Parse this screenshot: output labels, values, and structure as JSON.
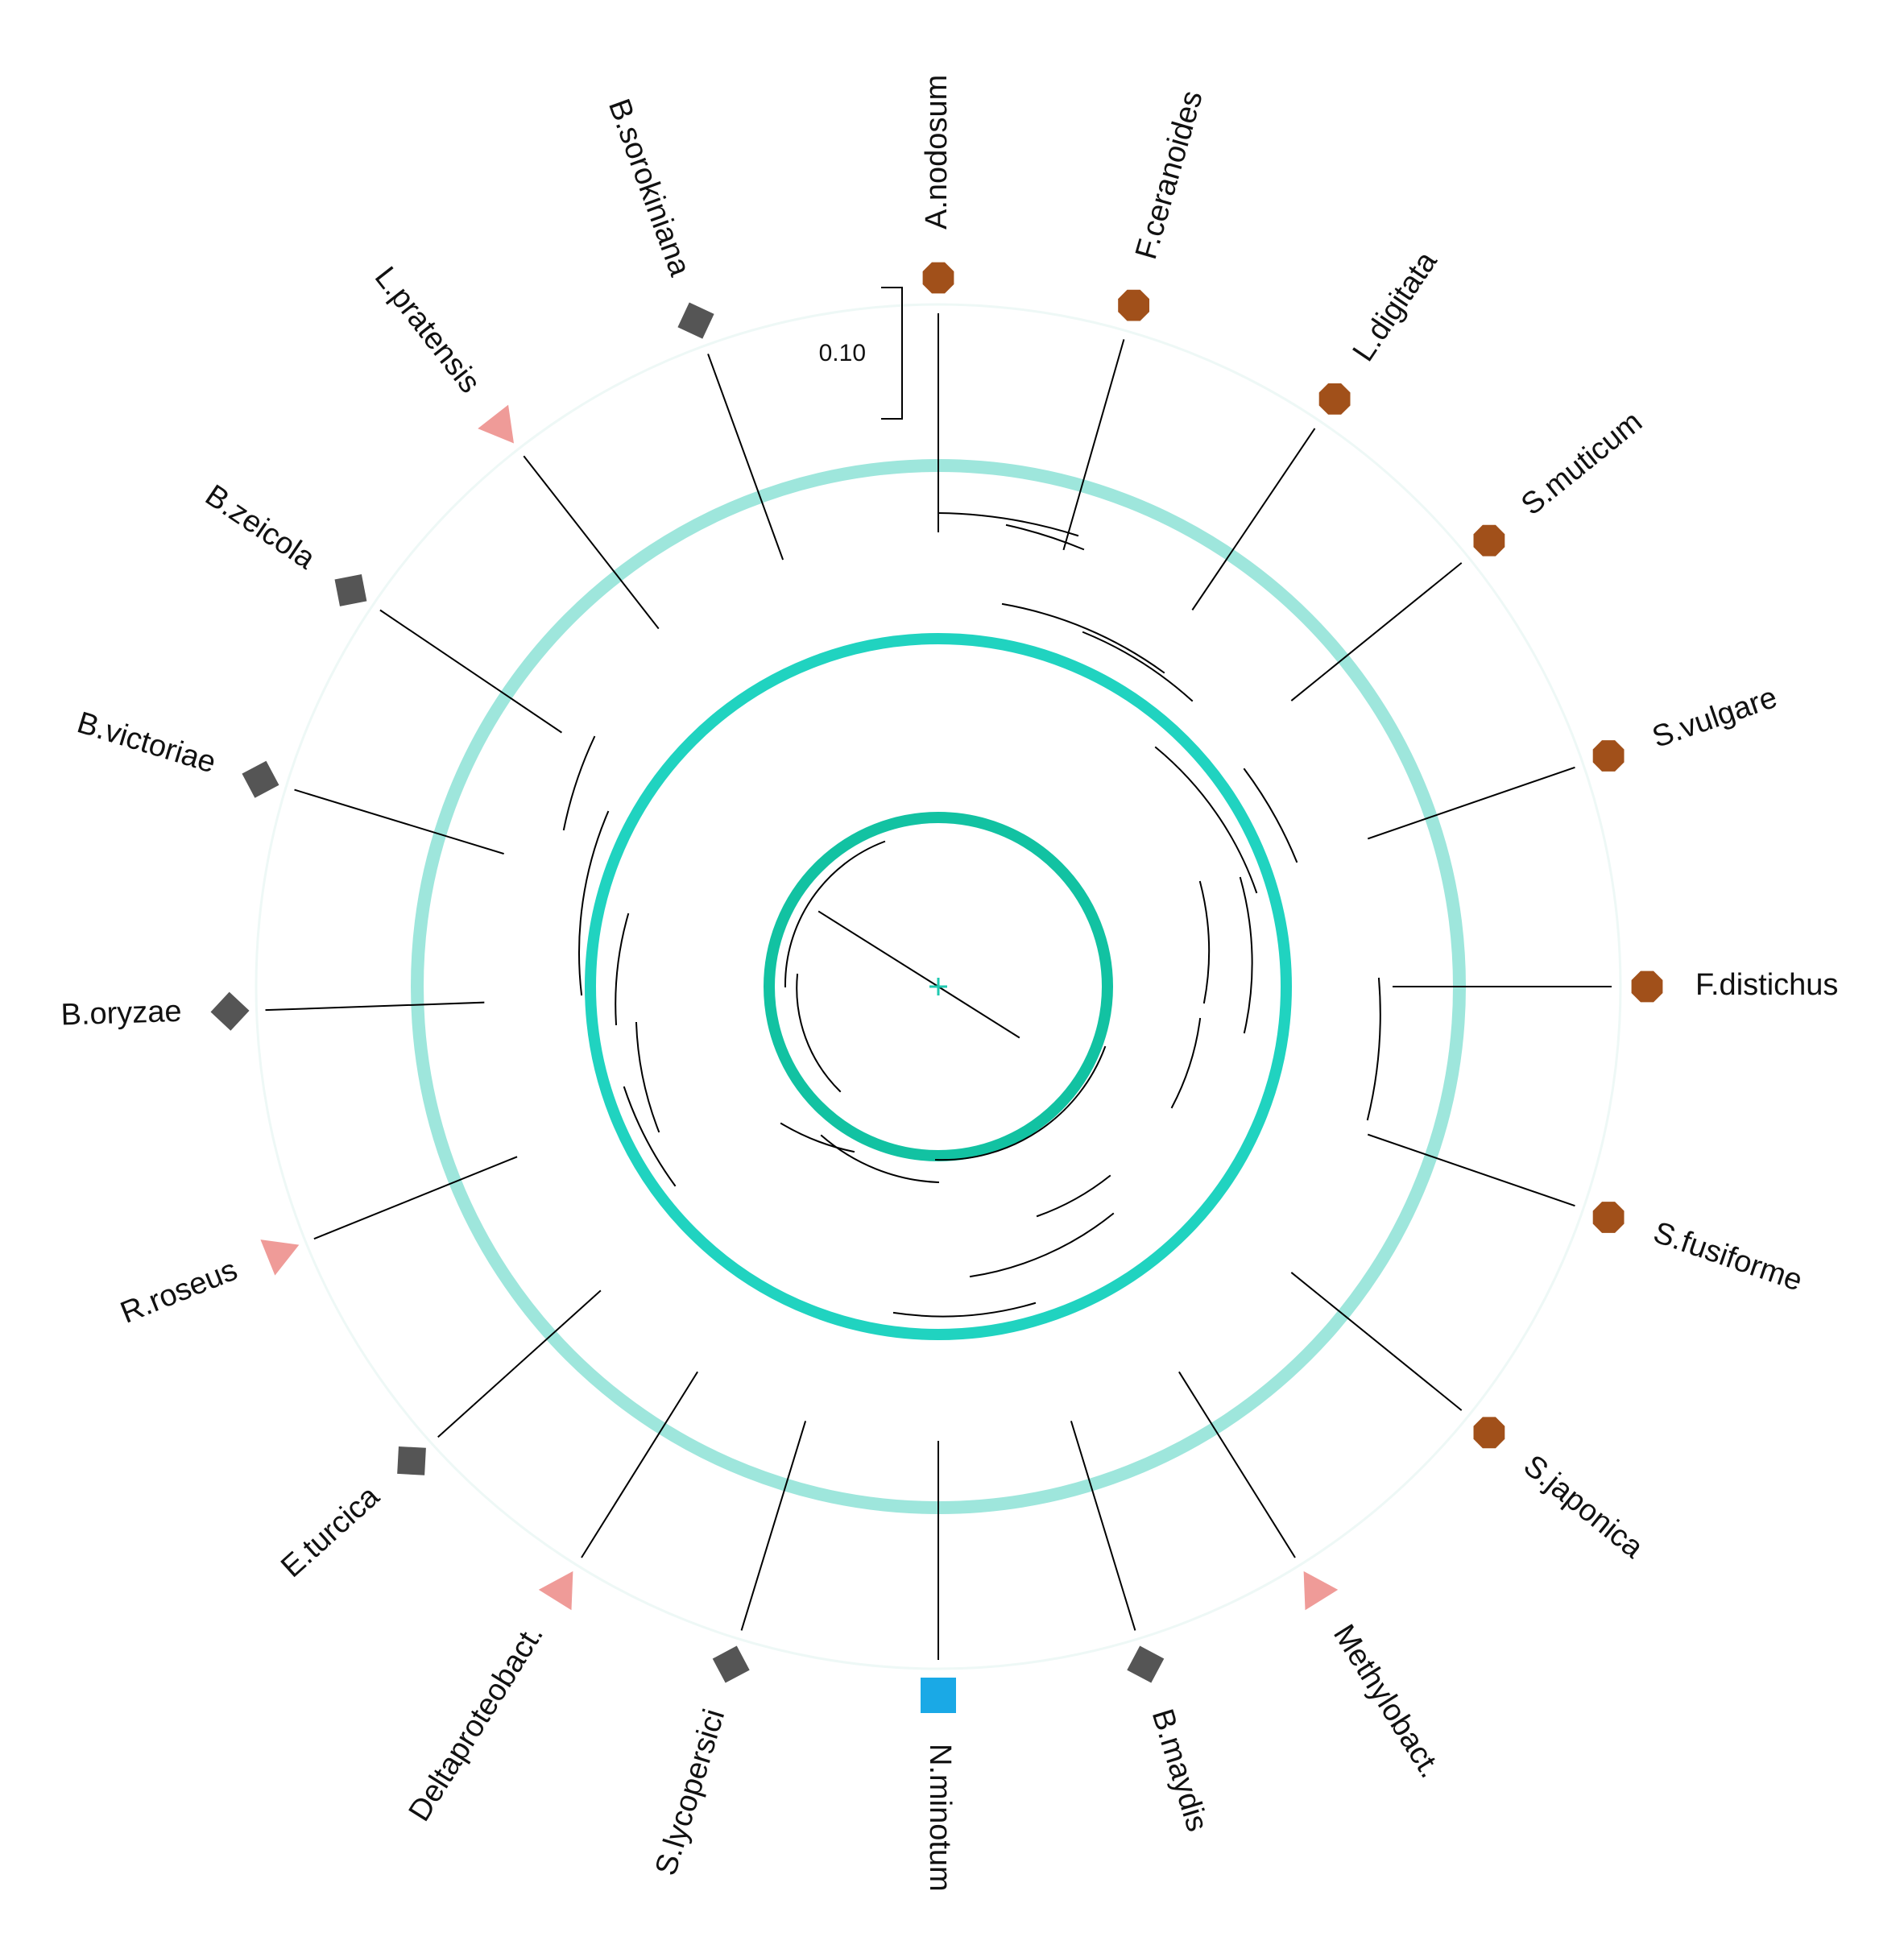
{
  "scale_bar": {
    "label": "0.10"
  },
  "colors": {
    "circle_color": "#a1501a",
    "diamond_color": "#555555",
    "triangle_color": "#ef9b98",
    "square_color": "#1aa9e6",
    "ring_inner": "#12c2a2",
    "ring_middle": "#20d3c0",
    "ring_outer": "#9ee6dc",
    "root_marker": "#20c9b0"
  },
  "taxa": [
    {
      "label": "A.nodosum",
      "marker": "circle",
      "angle_deg": 0
    },
    {
      "label": "F.ceranoides",
      "marker": "circle",
      "angle_deg": 16
    },
    {
      "label": "L.digitata",
      "marker": "circle",
      "angle_deg": 34
    },
    {
      "label": "S.muticum",
      "marker": "circle",
      "angle_deg": 51
    },
    {
      "label": "S.vulgare",
      "marker": "circle",
      "angle_deg": 71
    },
    {
      "label": "F.distichus",
      "marker": "circle",
      "angle_deg": 90
    },
    {
      "label": "S.fusiforme",
      "marker": "circle",
      "angle_deg": 109
    },
    {
      "label": "S.japonica",
      "marker": "circle",
      "angle_deg": 129
    },
    {
      "label": "Methylobact.",
      "marker": "triangle",
      "angle_deg": 148
    },
    {
      "label": "B.maydis",
      "marker": "diamond",
      "angle_deg": 163
    },
    {
      "label": "N.minotum",
      "marker": "square",
      "angle_deg": 180
    },
    {
      "label": "S.lycopersici",
      "marker": "diamond",
      "angle_deg": 197
    },
    {
      "label": "Deltaproteobact.",
      "marker": "triangle",
      "angle_deg": 212
    },
    {
      "label": "E.turcica",
      "marker": "diamond",
      "angle_deg": 228
    },
    {
      "label": "R.roseus",
      "marker": "triangle",
      "angle_deg": 248
    },
    {
      "label": "B.oryzae",
      "marker": "diamond",
      "angle_deg": 268
    },
    {
      "label": "B.victoriae",
      "marker": "diamond",
      "angle_deg": 287
    },
    {
      "label": "B.zeicola",
      "marker": "diamond",
      "angle_deg": 304
    },
    {
      "label": "L.pratensis",
      "marker": "triangle",
      "angle_deg": 322
    },
    {
      "label": "B.sorokiniana",
      "marker": "diamond",
      "angle_deg": 340
    }
  ]
}
